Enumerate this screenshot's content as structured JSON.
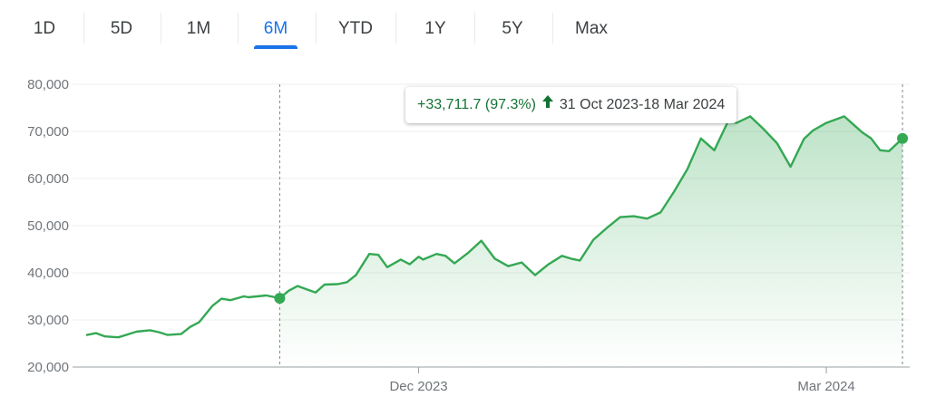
{
  "tabs": [
    {
      "label": "1D",
      "active": false
    },
    {
      "label": "5D",
      "active": false
    },
    {
      "label": "1M",
      "active": false
    },
    {
      "label": "6M",
      "active": true
    },
    {
      "label": "YTD",
      "active": false
    },
    {
      "label": "1Y",
      "active": false
    },
    {
      "label": "5Y",
      "active": false
    },
    {
      "label": "Max",
      "active": false
    }
  ],
  "tooltip": {
    "change": "+33,711.7 (97.3%)",
    "arrow_icon": "arrow-up-icon",
    "range": "31 Oct 2023-18 Mar 2024"
  },
  "colors": {
    "line": "#34a853",
    "active_tab": "#1a73e8",
    "positive": "#137333"
  },
  "chart_data": {
    "type": "area",
    "ylim": [
      20000,
      80000
    ],
    "yticks": [
      20000,
      30000,
      40000,
      50000,
      60000,
      70000,
      80000
    ],
    "ytick_labels": [
      "20,000",
      "30,000",
      "40,000",
      "50,000",
      "60,000",
      "70,000",
      "80,000"
    ],
    "xlim": [
      "2023-09-18",
      "2024-03-19"
    ],
    "xticks": [
      {
        "date": "2023-12-01",
        "label": "Dec 2023"
      },
      {
        "date": "2024-03-01",
        "label": "Mar 2024"
      }
    ],
    "grid": true,
    "selection": {
      "start": "2023-10-31",
      "end": "2024-03-18"
    },
    "series": [
      {
        "x": [
          "2023-09-18",
          "2023-09-20",
          "2023-09-22",
          "2023-09-25",
          "2023-09-27",
          "2023-09-29",
          "2023-10-02",
          "2023-10-04",
          "2023-10-06",
          "2023-10-09",
          "2023-10-11",
          "2023-10-13",
          "2023-10-16",
          "2023-10-18",
          "2023-10-20",
          "2023-10-23",
          "2023-10-24",
          "2023-10-26",
          "2023-10-28",
          "2023-10-31",
          "2023-11-02",
          "2023-11-04",
          "2023-11-06",
          "2023-11-08",
          "2023-11-10",
          "2023-11-13",
          "2023-11-15",
          "2023-11-17",
          "2023-11-20",
          "2023-11-22",
          "2023-11-24",
          "2023-11-27",
          "2023-11-29",
          "2023-12-01",
          "2023-12-02",
          "2023-12-05",
          "2023-12-07",
          "2023-12-09",
          "2023-12-12",
          "2023-12-15",
          "2023-12-18",
          "2023-12-21",
          "2023-12-24",
          "2023-12-27",
          "2023-12-30",
          "2024-01-02",
          "2024-01-04",
          "2024-01-06",
          "2024-01-09",
          "2024-01-12",
          "2024-01-15",
          "2024-01-18",
          "2024-01-21",
          "2024-01-24",
          "2024-01-27",
          "2024-01-30",
          "2024-02-02",
          "2024-02-05",
          "2024-02-08",
          "2024-02-10",
          "2024-02-13",
          "2024-02-16",
          "2024-02-19",
          "2024-02-22",
          "2024-02-25",
          "2024-02-27",
          "2024-03-01",
          "2024-03-03",
          "2024-03-05",
          "2024-03-07",
          "2024-03-09",
          "2024-03-11",
          "2024-03-13",
          "2024-03-15",
          "2024-03-18"
        ],
        "y": [
          26800,
          27200,
          26500,
          26300,
          26900,
          27500,
          27800,
          27400,
          26800,
          27000,
          28500,
          29500,
          33000,
          34500,
          34200,
          35000,
          34800,
          35000,
          35200,
          34600,
          36200,
          37200,
          36500,
          35800,
          37500,
          37600,
          38000,
          39500,
          44000,
          43800,
          41200,
          42800,
          41800,
          43400,
          42800,
          44000,
          43600,
          42000,
          44200,
          46800,
          43000,
          41400,
          42200,
          39500,
          41800,
          43600,
          43000,
          42600,
          47000,
          49500,
          51800,
          52000,
          51500,
          52800,
          57200,
          62000,
          68500,
          66000,
          72000,
          71800,
          73200,
          70500,
          67500,
          62500,
          68400,
          70200,
          71800,
          72500,
          73200,
          71500,
          69800,
          68500,
          66000,
          65800,
          68500
        ]
      }
    ]
  }
}
